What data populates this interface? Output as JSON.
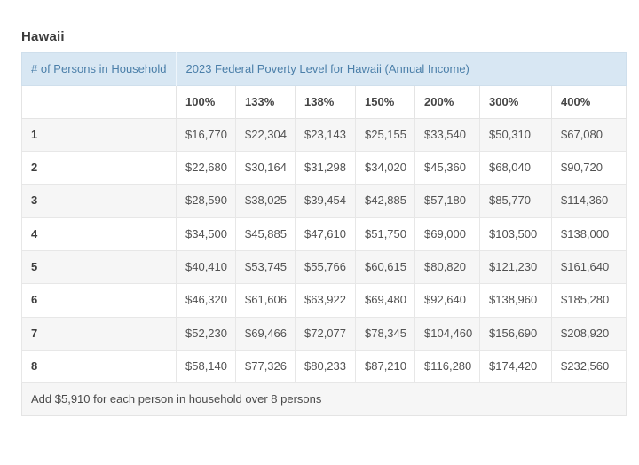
{
  "page": {
    "title": "Hawaii"
  },
  "colors": {
    "header_background": "#d8e7f3",
    "header_text": "#4b7fa9",
    "row_alt_background": "#f6f6f6",
    "border": "#e4e4e4",
    "body_text": "#515151",
    "title_text": "#3b3b3b"
  },
  "table": {
    "col1_header": "# of Persons in Household",
    "merged_header": "2023 Federal Poverty Level for Hawaii (Annual Income)",
    "percent_headers": [
      "100%",
      "133%",
      "138%",
      "150%",
      "200%",
      "300%",
      "400%"
    ],
    "rows": [
      {
        "persons": "1",
        "values": [
          "$16,770",
          "$22,304",
          "$23,143",
          "$25,155",
          "$33,540",
          "$50,310",
          "$67,080"
        ]
      },
      {
        "persons": "2",
        "values": [
          "$22,680",
          "$30,164",
          "$31,298",
          "$34,020",
          "$45,360",
          "$68,040",
          "$90,720"
        ]
      },
      {
        "persons": "3",
        "values": [
          "$28,590",
          "$38,025",
          "$39,454",
          "$42,885",
          "$57,180",
          "$85,770",
          "$114,360"
        ]
      },
      {
        "persons": "4",
        "values": [
          "$34,500",
          "$45,885",
          "$47,610",
          "$51,750",
          "$69,000",
          "$103,500",
          "$138,000"
        ]
      },
      {
        "persons": "5",
        "values": [
          "$40,410",
          "$53,745",
          "$55,766",
          "$60,615",
          "$80,820",
          "$121,230",
          "$161,640"
        ]
      },
      {
        "persons": "6",
        "values": [
          "$46,320",
          "$61,606",
          "$63,922",
          "$69,480",
          "$92,640",
          "$138,960",
          "$185,280"
        ]
      },
      {
        "persons": "7",
        "values": [
          "$52,230",
          "$69,466",
          "$72,077",
          "$78,345",
          "$104,460",
          "$156,690",
          "$208,920"
        ]
      },
      {
        "persons": "8",
        "values": [
          "$58,140",
          "$77,326",
          "$80,233",
          "$87,210",
          "$116,280",
          "$174,420",
          "$232,560"
        ]
      }
    ],
    "footer_note": "Add $5,910 for each person in household over 8 persons"
  }
}
